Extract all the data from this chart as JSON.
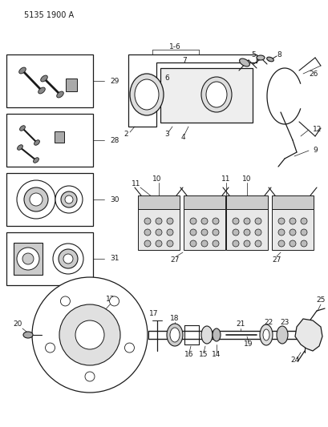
{
  "title": "5135 1900 A",
  "bg_color": "#ffffff",
  "line_color": "#1a1a1a",
  "fig_width": 4.1,
  "fig_height": 5.33,
  "dpi": 100
}
